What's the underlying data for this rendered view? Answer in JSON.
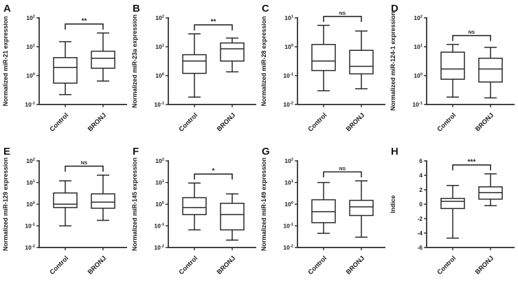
{
  "figure": {
    "background": "#ffffff",
    "line_color": "#262626",
    "text_color": "#1a1a1a",
    "panels_per_row": 4,
    "group_labels": [
      "Control",
      "BRONJ"
    ]
  },
  "chart_data": [
    {
      "type": "box",
      "panel": "A",
      "ylabel": "Normalized miR-21 expression",
      "scale": "log",
      "ylim_exp": [
        -1,
        2
      ],
      "yticks_exp": [
        2,
        1,
        0,
        -1
      ],
      "categories": [
        "Control",
        "BRONJ"
      ],
      "significance": "**",
      "series": [
        {
          "name": "Control",
          "min": 0.22,
          "q1": 0.55,
          "median": 1.9,
          "q3": 4.2,
          "max": 15
        },
        {
          "name": "BRONJ",
          "min": 0.65,
          "q1": 1.8,
          "median": 4.0,
          "q3": 7.0,
          "max": 30
        }
      ]
    },
    {
      "type": "box",
      "panel": "B",
      "ylabel": "Normalized miR-23a expression",
      "scale": "log",
      "ylim_exp": [
        -1,
        2
      ],
      "yticks_exp": [
        2,
        1,
        0,
        -1
      ],
      "categories": [
        "Control",
        "BRONJ"
      ],
      "significance": "**",
      "series": [
        {
          "name": "Control",
          "min": 0.18,
          "q1": 1.2,
          "median": 3.2,
          "q3": 5.3,
          "max": 28
        },
        {
          "name": "BRONJ",
          "min": 1.35,
          "q1": 3.2,
          "median": 8.5,
          "q3": 13.5,
          "max": 20
        }
      ]
    },
    {
      "type": "box",
      "panel": "C",
      "ylabel": "Normalized miR-28 expression",
      "scale": "log",
      "ylim_exp": [
        -2,
        1
      ],
      "yticks_exp": [
        1,
        0,
        -1,
        -2
      ],
      "categories": [
        "Control",
        "BRONJ"
      ],
      "significance": "NS",
      "series": [
        {
          "name": "Control",
          "min": 0.03,
          "q1": 0.15,
          "median": 0.32,
          "q3": 1.2,
          "max": 5.5
        },
        {
          "name": "BRONJ",
          "min": 0.035,
          "q1": 0.115,
          "median": 0.21,
          "q3": 0.75,
          "max": 3.5
        }
      ]
    },
    {
      "type": "box",
      "panel": "D",
      "ylabel": "Normalized miR-124-1 expression",
      "scale": "log",
      "ylim_exp": [
        -1,
        2
      ],
      "yticks_exp": [
        2,
        1,
        0,
        -1
      ],
      "categories": [
        "Control",
        "BRONJ"
      ],
      "significance": "NS",
      "series": [
        {
          "name": "Control",
          "min": 0.18,
          "q1": 0.75,
          "median": 1.7,
          "q3": 6.5,
          "max": 12
        },
        {
          "name": "BRONJ",
          "min": 0.17,
          "q1": 0.6,
          "median": 1.7,
          "q3": 4.0,
          "max": 9.5
        }
      ]
    },
    {
      "type": "box",
      "panel": "E",
      "ylabel": "Normalized miR-129 expression",
      "scale": "log",
      "ylim_exp": [
        -2,
        2
      ],
      "yticks_exp": [
        2,
        1,
        0,
        -1,
        -2
      ],
      "categories": [
        "Control",
        "BRONJ"
      ],
      "significance": "NS",
      "series": [
        {
          "name": "Control",
          "min": 0.1,
          "q1": 0.7,
          "median": 1.0,
          "q3": 3.3,
          "max": 12
        },
        {
          "name": "BRONJ",
          "min": 0.18,
          "q1": 0.65,
          "median": 1.25,
          "q3": 3.0,
          "max": 22
        }
      ]
    },
    {
      "type": "box",
      "panel": "F",
      "ylabel": "Normalized miR-145 expression",
      "scale": "log",
      "ylim_exp": [
        -2,
        2
      ],
      "yticks_exp": [
        2,
        1,
        0,
        -1,
        -2
      ],
      "categories": [
        "Control",
        "BRONJ"
      ],
      "significance": "*",
      "series": [
        {
          "name": "Control",
          "min": 0.065,
          "q1": 0.33,
          "median": 0.7,
          "q3": 2.0,
          "max": 9.5
        },
        {
          "name": "BRONJ",
          "min": 0.022,
          "q1": 0.065,
          "median": 0.33,
          "q3": 1.1,
          "max": 3.0
        }
      ]
    },
    {
      "type": "box",
      "panel": "G",
      "ylabel": "Normalized miR-149 expression",
      "scale": "log",
      "ylim_exp": [
        -2,
        2
      ],
      "yticks_exp": [
        2,
        1,
        0,
        -1,
        -2
      ],
      "categories": [
        "Control",
        "BRONJ"
      ],
      "significance": "NS",
      "series": [
        {
          "name": "Control",
          "min": 0.045,
          "q1": 0.14,
          "median": 0.45,
          "q3": 1.6,
          "max": 10
        },
        {
          "name": "BRONJ",
          "min": 0.03,
          "q1": 0.3,
          "median": 0.75,
          "q3": 1.5,
          "max": 12
        }
      ]
    },
    {
      "type": "box",
      "panel": "H",
      "ylabel": "Indice",
      "scale": "linear",
      "ylim": [
        -6,
        6
      ],
      "yticks": [
        6,
        4,
        2,
        0,
        -2,
        -4,
        -6
      ],
      "categories": [
        "Control",
        "BRONJ"
      ],
      "significance": "***",
      "series": [
        {
          "name": "Control",
          "min": -4.7,
          "q1": -0.6,
          "median": 0.4,
          "q3": 0.8,
          "max": 2.6
        },
        {
          "name": "BRONJ",
          "min": -0.2,
          "q1": 0.7,
          "median": 1.6,
          "q3": 2.4,
          "max": 4.2
        }
      ]
    }
  ]
}
